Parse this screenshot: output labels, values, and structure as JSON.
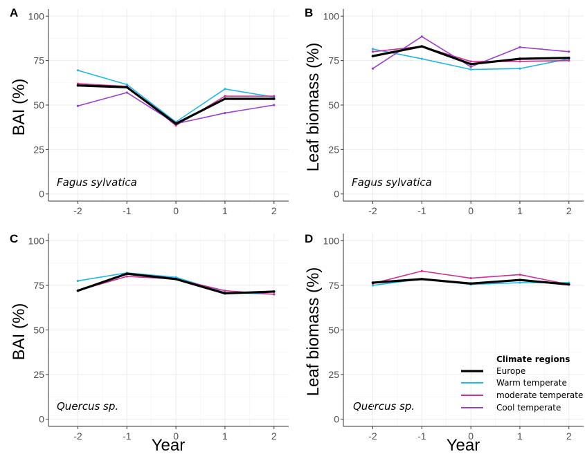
{
  "chart_data": {
    "type": "line",
    "legend": {
      "title": "Climate regions",
      "placement": "bottom-right of panel D",
      "entries": [
        "Europe",
        "Warm temperate",
        "moderate temperate",
        "Cool temperate"
      ]
    },
    "series_colors": {
      "Europe": "#000000",
      "Warm temperate": "#1fb8e8",
      "moderate temperate": "#cc2f96",
      "Cool temperate": "#9b3fcc"
    },
    "x_ticks": [
      -2,
      -1,
      0,
      1,
      2
    ],
    "y_ticks": [
      0,
      25,
      50,
      75,
      100
    ],
    "xlim": [
      -2.6,
      2.3
    ],
    "ylim": [
      -4,
      104
    ],
    "grid": true,
    "panels": [
      {
        "id": "A",
        "ylabel": "BAI (%)",
        "xlabel": "",
        "species": "Fagus sylvatica",
        "series": [
          {
            "name": "Europe",
            "x": [
              -2,
              -1,
              0,
              1,
              2
            ],
            "y": [
              61,
              60,
              39.5,
              53.5,
              53.5
            ]
          },
          {
            "name": "Warm temperate",
            "x": [
              -2,
              -1,
              0,
              1,
              2
            ],
            "y": [
              69.5,
              61.5,
              40.5,
              59,
              54.5
            ]
          },
          {
            "name": "moderate temperate",
            "x": [
              -2,
              -1,
              0,
              1,
              2
            ],
            "y": [
              62,
              60.5,
              38.5,
              55,
              55
            ]
          },
          {
            "name": "Cool temperate",
            "x": [
              -2,
              -1,
              0,
              1,
              2
            ],
            "y": [
              49.5,
              57,
              39.5,
              45.5,
              50
            ]
          }
        ]
      },
      {
        "id": "B",
        "ylabel": "Leaf biomass (%)",
        "xlabel": "",
        "species": "Fagus sylvatica",
        "series": [
          {
            "name": "Europe",
            "x": [
              -2,
              -1,
              0,
              1,
              2
            ],
            "y": [
              77.5,
              83,
              73,
              76,
              76.5
            ]
          },
          {
            "name": "Warm temperate",
            "x": [
              -2,
              -1,
              0,
              1,
              2
            ],
            "y": [
              81.5,
              76,
              70,
              70.5,
              76
            ]
          },
          {
            "name": "moderate temperate",
            "x": [
              -2,
              -1,
              0,
              1,
              2
            ],
            "y": [
              80,
              83,
              74.5,
              74.5,
              75
            ]
          },
          {
            "name": "Cool temperate",
            "x": [
              -2,
              -1,
              0,
              1,
              2
            ],
            "y": [
              70.5,
              88.5,
              71.5,
              82.5,
              80
            ]
          }
        ]
      },
      {
        "id": "C",
        "ylabel": "BAI (%)",
        "xlabel": "Year",
        "species": "Quercus sp.",
        "series": [
          {
            "name": "Europe",
            "x": [
              -2,
              -1,
              0,
              1,
              2
            ],
            "y": [
              72,
              81.5,
              78.5,
              70.5,
              71.5
            ]
          },
          {
            "name": "Warm temperate",
            "x": [
              -2,
              -1,
              0,
              1,
              2
            ],
            "y": [
              77.5,
              82,
              79.5,
              71,
              70
            ]
          },
          {
            "name": "moderate temperate",
            "x": [
              -2,
              -1,
              0,
              1,
              2
            ],
            "y": [
              72,
              80,
              78.5,
              72,
              70
            ]
          }
        ]
      },
      {
        "id": "D",
        "ylabel": "Leaf biomass (%)",
        "xlabel": "Year",
        "species": "Quercus sp.",
        "series": [
          {
            "name": "Europe",
            "x": [
              -2,
              -1,
              0,
              1,
              2
            ],
            "y": [
              76.5,
              78.5,
              76,
              78,
              75.5
            ]
          },
          {
            "name": "Warm temperate",
            "x": [
              -2,
              -1,
              0,
              1,
              2
            ],
            "y": [
              75,
              78.5,
              75.5,
              76.5,
              76.5
            ]
          },
          {
            "name": "moderate temperate",
            "x": [
              -2,
              -1,
              0,
              1,
              2
            ],
            "y": [
              76,
              83,
              79,
              81,
              75.5
            ]
          }
        ]
      }
    ]
  }
}
